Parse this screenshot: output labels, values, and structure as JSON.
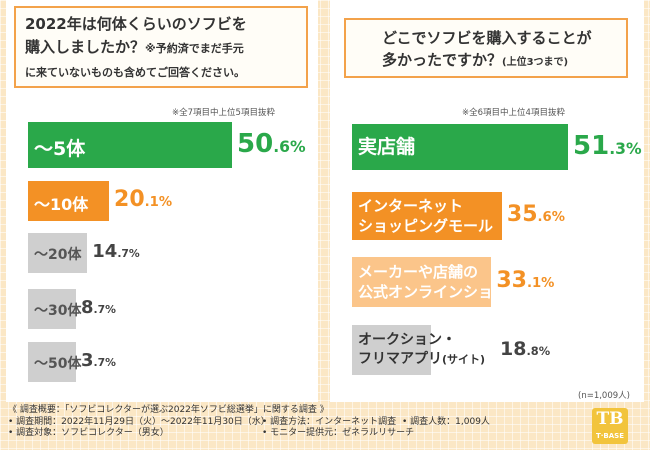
{
  "colors": {
    "green": "#2aa84a",
    "orange": "#f39125",
    "light_orange": "#fbc58a",
    "gray": "#cfcfcf",
    "pct_green": "#2aa84a",
    "pct_orange": "#f39125",
    "pct_gray": "#444444"
  },
  "left": {
    "question_line1": "2022年は何体くらいのソフビを",
    "question_line2": "購入しましたか？",
    "question_note2": "※予約済でまだ手元",
    "question_line3": "に来ていないものも含めてご回答ください。",
    "subnote": "※全7項目中上位5項目抜粋"
  },
  "right": {
    "question_line1": "どこでソフビを購入することが",
    "question_line2": "多かったですか？",
    "question_note": "(上位3つまで)",
    "subnote": "※全6項目中上位4項目抜粋",
    "sample": "(n=1,009人)"
  },
  "chart_data": [
    {
      "type": "bar",
      "orientation": "horizontal",
      "title": "2022年は何体くらいのソフビを購入しましたか？",
      "categories": [
        "〜5体",
        "〜10体",
        "〜20体",
        "〜30体",
        "〜50体"
      ],
      "values": [
        50.6,
        20.1,
        14.7,
        8.7,
        3.7
      ],
      "unit": "%",
      "value_labels": [
        "50.6",
        "20.1",
        "14.7",
        "8.7",
        "3.7"
      ]
    },
    {
      "type": "bar",
      "orientation": "horizontal",
      "title": "どこでソフビを購入することが多かったですか？",
      "categories": [
        "実店舗",
        "インターネットショッピングモール",
        "メーカーや店舗の公式オンラインショップ",
        "オークション・フリマアプリ(サイト)"
      ],
      "label_lines": [
        [
          "実店舗"
        ],
        [
          "インターネット",
          "ショッピングモール"
        ],
        [
          "メーカーや店舗の",
          "公式オンラインショップ"
        ],
        [
          "オークション・",
          "フリマアプリ"
        ]
      ],
      "label_suffix": [
        "",
        "",
        "",
        "(サイト)"
      ],
      "values": [
        51.3,
        35.6,
        33.1,
        18.8
      ],
      "unit": "%",
      "value_labels": [
        "51.3",
        "35.6",
        "33.1",
        "18.8"
      ]
    }
  ],
  "footer": {
    "line1": "《 調査概要：「ソフビコレクターが選ぶ2022年ソフビ総選挙」に関する調査 》",
    "period": "• 調査期間：2022年11月29日（火）〜2022年11月30日（水）",
    "method": "• 調査方法：インターネット調査",
    "count": "• 調査人数：1,009人",
    "target": "• 調査対象：ソフビコレクター（男女）",
    "provider": "• モニター提供元：ゼネラルリサーチ"
  },
  "logo": {
    "mark": "TB",
    "text": "T·BASE"
  }
}
